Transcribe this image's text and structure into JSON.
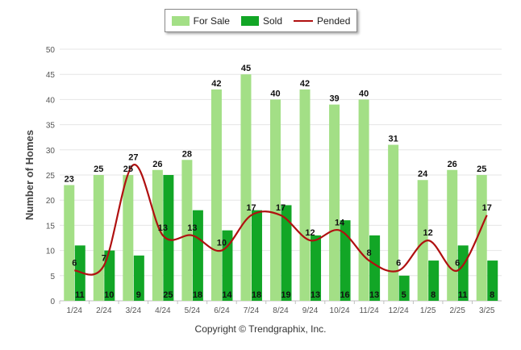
{
  "chart_data": {
    "type": "bar",
    "ylabel": "Number of Homes",
    "xlabel": "",
    "title": "",
    "ylim": [
      0,
      50
    ],
    "yticks": [
      0,
      5,
      10,
      15,
      20,
      25,
      30,
      35,
      40,
      45,
      50
    ],
    "categories": [
      "1/24",
      "2/24",
      "3/24",
      "4/24",
      "5/24",
      "6/24",
      "7/24",
      "8/24",
      "9/24",
      "10/24",
      "11/24",
      "12/24",
      "1/25",
      "2/25",
      "3/25"
    ],
    "series": [
      {
        "name": "For Sale",
        "type": "bar",
        "color": "#a3df86",
        "values": [
          23,
          25,
          25,
          26,
          28,
          42,
          45,
          40,
          42,
          39,
          40,
          31,
          24,
          26,
          25
        ]
      },
      {
        "name": "Sold",
        "type": "bar",
        "color": "#12a626",
        "values": [
          11,
          10,
          9,
          25,
          18,
          14,
          18,
          19,
          13,
          16,
          13,
          5,
          8,
          11,
          8
        ]
      },
      {
        "name": "Pended",
        "type": "line",
        "color": "#b01010",
        "values": [
          6,
          7,
          27,
          13,
          13,
          10,
          17,
          17,
          12,
          14,
          8,
          6,
          12,
          6,
          17
        ]
      }
    ],
    "legend_position": "top-center",
    "grid": true
  },
  "legend": {
    "for_sale": "For Sale",
    "sold": "Sold",
    "pended": "Pended"
  },
  "footer": "Copyright © Trendgraphix, Inc."
}
